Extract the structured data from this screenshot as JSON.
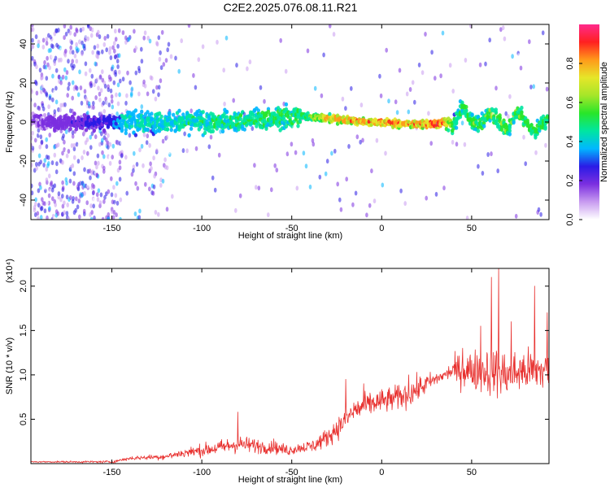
{
  "title": "C2E2.2025.076.08.11.R21",
  "chart_data": [
    {
      "type": "heatmap",
      "xlabel": "Height of straight line (km)",
      "ylabel": "Frequency (Hz)",
      "xlim": [
        -195,
        93
      ],
      "ylim": [
        -50,
        50
      ],
      "x_ticks": [
        -150,
        -100,
        -50,
        0,
        50
      ],
      "y_ticks": [
        -40,
        -20,
        0,
        20,
        40
      ],
      "colorbar": {
        "label": "Normalized spectral amplitude",
        "range": [
          0,
          1
        ],
        "ticks": [
          0.0,
          0.2,
          0.4,
          0.6,
          0.8
        ],
        "colormap": [
          "#ffffff",
          "#c89bf0",
          "#7b2fe0",
          "#2a1be6",
          "#00b7ff",
          "#00e6a0",
          "#29e629",
          "#a6e629",
          "#e6e629",
          "#ff9a1a",
          "#ff2020",
          "#ff2a8c"
        ]
      },
      "ridge": {
        "points": [
          [
            -195,
            0
          ],
          [
            -150,
            0
          ],
          [
            -100,
            0
          ],
          [
            -50,
            2
          ],
          [
            -45,
            3
          ],
          [
            -30,
            2
          ],
          [
            -20,
            1
          ],
          [
            -10,
            0
          ],
          [
            0,
            0
          ],
          [
            10,
            -1
          ],
          [
            20,
            -1
          ],
          [
            30,
            -1
          ],
          [
            35,
            0
          ],
          [
            40,
            -2
          ],
          [
            45,
            8
          ],
          [
            50,
            0
          ],
          [
            55,
            -1
          ],
          [
            60,
            5
          ],
          [
            65,
            1
          ],
          [
            70,
            -4
          ],
          [
            75,
            6
          ],
          [
            80,
            0
          ],
          [
            85,
            -5
          ],
          [
            90,
            0
          ],
          [
            93,
            1
          ]
        ],
        "core_amplitude": [
          [
            -195,
            0.15
          ],
          [
            -150,
            0.3
          ],
          [
            -145,
            0.45
          ],
          [
            -100,
            0.5
          ],
          [
            -60,
            0.55
          ],
          [
            -45,
            0.55
          ],
          [
            -30,
            0.8
          ],
          [
            -10,
            0.9
          ],
          [
            0,
            0.9
          ],
          [
            20,
            0.85
          ],
          [
            30,
            0.95
          ],
          [
            35,
            0.9
          ],
          [
            40,
            0.55
          ],
          [
            60,
            0.6
          ],
          [
            80,
            0.6
          ],
          [
            93,
            0.55
          ]
        ]
      }
    },
    {
      "type": "line",
      "xlabel": "Height of straight line (km)",
      "ylabel": "SNR (10 * v/v)",
      "y_multiplier": "(x10⁴)",
      "xlim": [
        -195,
        93
      ],
      "ylim": [
        0,
        2.2
      ],
      "x_ticks": [
        -150,
        -100,
        -50,
        0,
        50
      ],
      "y_ticks": [
        0.5,
        1.0,
        1.5,
        2.0
      ],
      "y_tick_labels": [
        "0.5",
        "1.0",
        "1.5",
        "2.0"
      ],
      "series": [
        {
          "color": "#e8312f",
          "baseline": [
            [
              -195,
              0.02
            ],
            [
              -150,
              0.02
            ],
            [
              -140,
              0.06
            ],
            [
              -120,
              0.08
            ],
            [
              -110,
              0.12
            ],
            [
              -100,
              0.15
            ],
            [
              -90,
              0.18
            ],
            [
              -80,
              0.22
            ],
            [
              -70,
              0.2
            ],
            [
              -60,
              0.18
            ],
            [
              -52,
              0.15
            ],
            [
              -45,
              0.18
            ],
            [
              -38,
              0.2
            ],
            [
              -30,
              0.3
            ],
            [
              -22,
              0.45
            ],
            [
              -15,
              0.6
            ],
            [
              -5,
              0.68
            ],
            [
              5,
              0.72
            ],
            [
              15,
              0.78
            ],
            [
              25,
              0.9
            ],
            [
              35,
              1.0
            ],
            [
              40,
              1.05
            ],
            [
              50,
              1.05
            ],
            [
              60,
              1.05
            ],
            [
              70,
              1.0
            ],
            [
              80,
              1.05
            ],
            [
              93,
              1.05
            ]
          ],
          "spread": [
            [
              -195,
              0.01
            ],
            [
              -150,
              0.02
            ],
            [
              -120,
              0.05
            ],
            [
              -100,
              0.1
            ],
            [
              -80,
              0.14
            ],
            [
              -60,
              0.1
            ],
            [
              -45,
              0.08
            ],
            [
              -30,
              0.15
            ],
            [
              -20,
              0.2
            ],
            [
              0,
              0.2
            ],
            [
              20,
              0.2
            ],
            [
              35,
              0.08
            ],
            [
              42,
              0.25
            ],
            [
              60,
              0.4
            ],
            [
              80,
              0.35
            ],
            [
              93,
              0.35
            ]
          ],
          "peaks": [
            [
              -80,
              0.58
            ],
            [
              -60,
              0.28
            ],
            [
              -20,
              0.95
            ],
            [
              -10,
              0.9
            ],
            [
              15,
              1.0
            ],
            [
              38,
              1.05
            ],
            [
              45,
              1.3
            ],
            [
              55,
              1.55
            ],
            [
              61,
              2.1
            ],
            [
              65,
              2.2
            ],
            [
              72,
              1.6
            ],
            [
              85,
              2.0
            ],
            [
              92,
              1.7
            ]
          ]
        }
      ]
    }
  ]
}
